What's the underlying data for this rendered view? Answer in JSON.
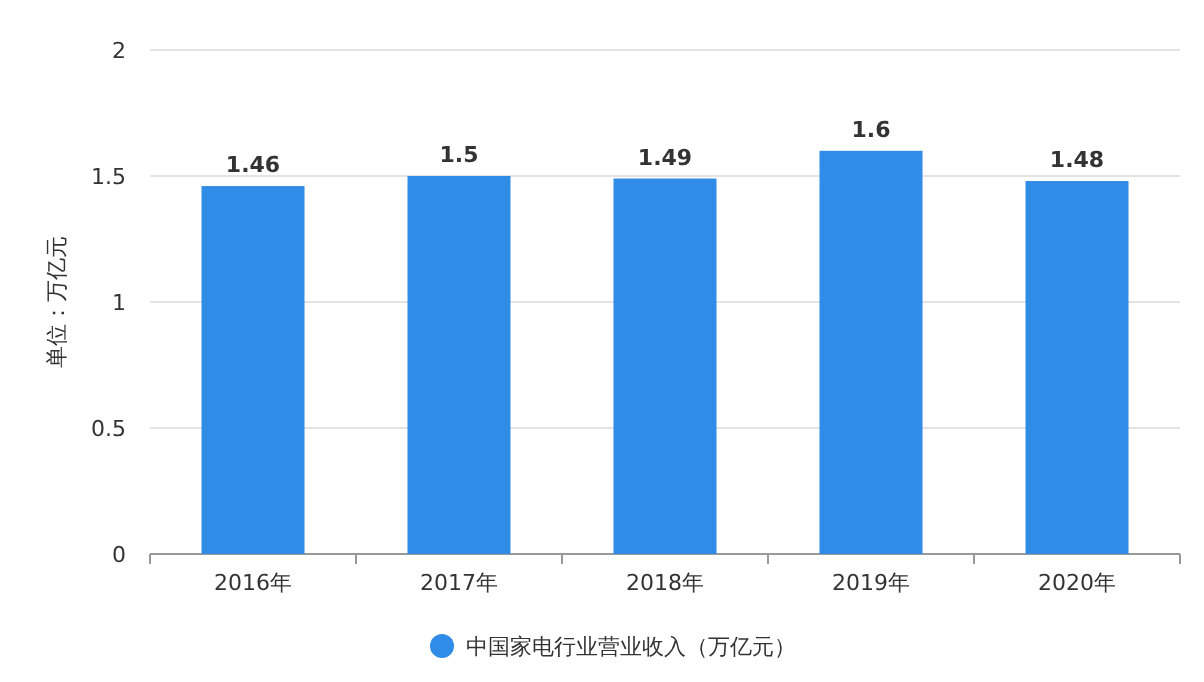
{
  "chart_data": {
    "type": "bar",
    "ylabel": "单位：万亿元",
    "categories": [
      "2016年",
      "2017年",
      "2018年",
      "2019年",
      "2020年"
    ],
    "series": [
      {
        "name": "中国家电行业营业收入（万亿元）",
        "color": "#318ce7",
        "values": [
          1.46,
          1.5,
          1.49,
          1.6,
          1.48
        ]
      }
    ],
    "ylim": [
      0,
      2
    ],
    "yticks": [
      0,
      0.5,
      1,
      1.5,
      2
    ],
    "grid": "y",
    "legend": "bottom",
    "data_labels": true
  }
}
